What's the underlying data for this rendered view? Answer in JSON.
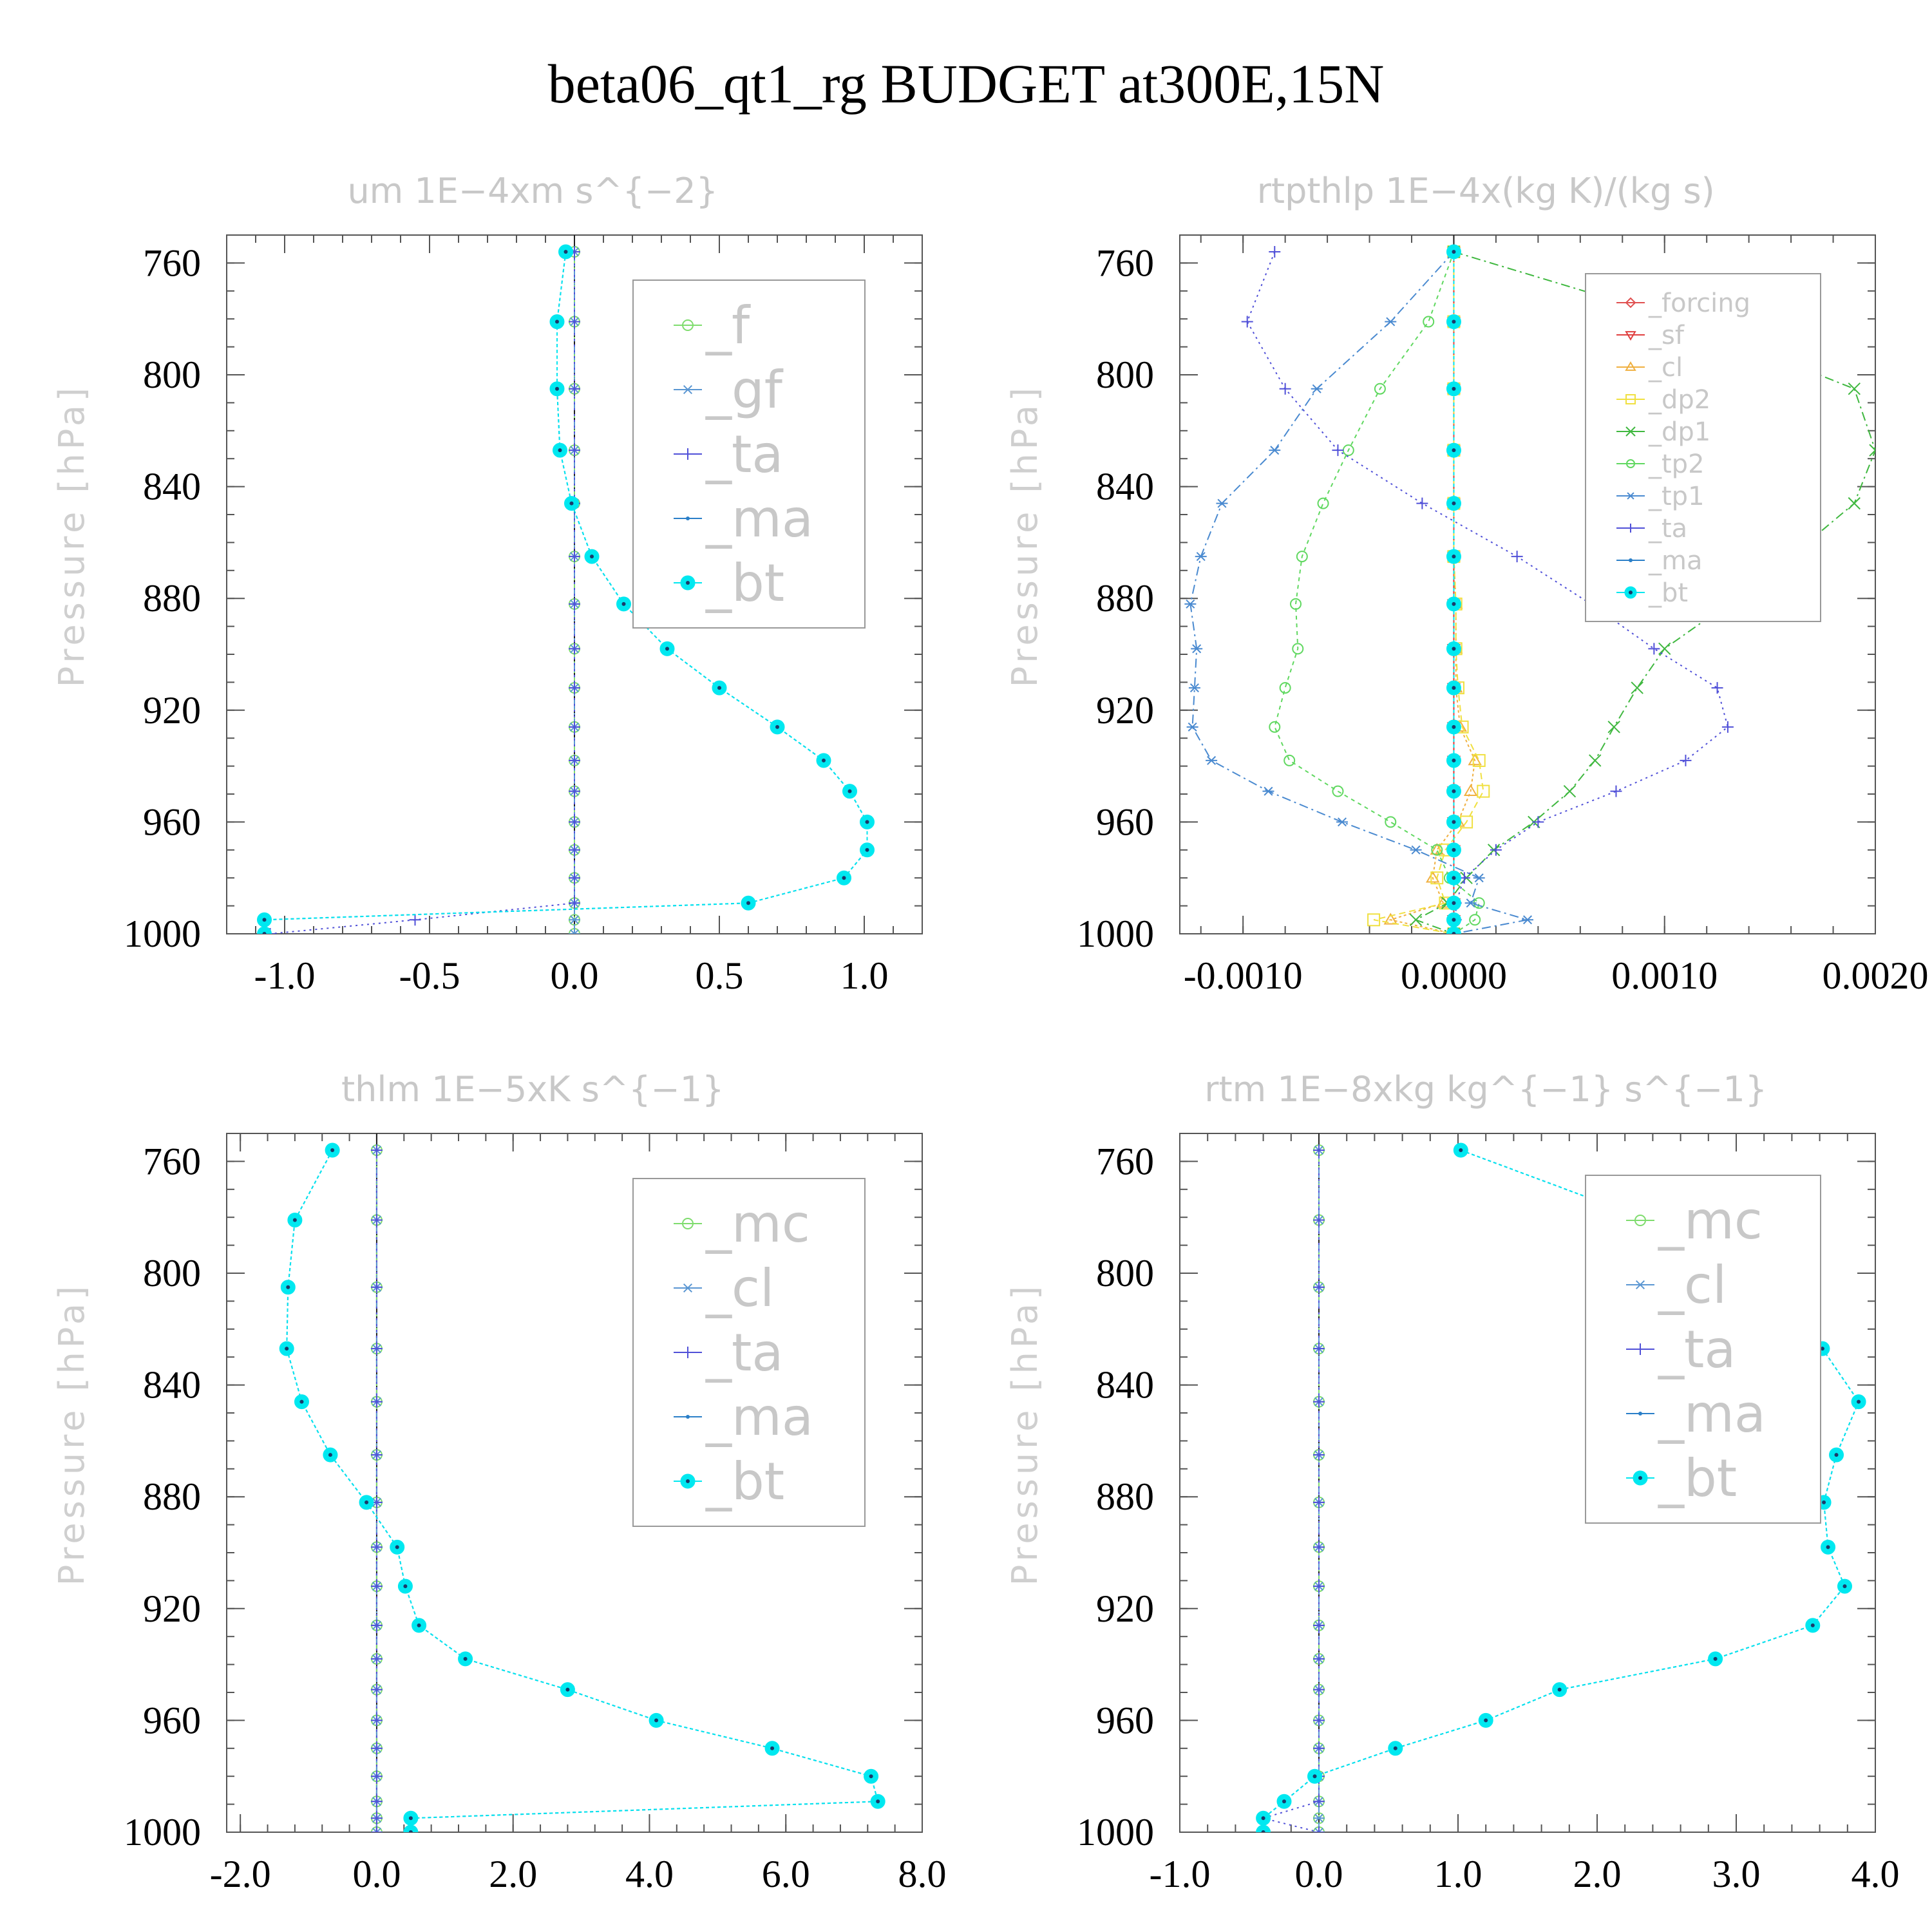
{
  "title": "beta06_qt1_rg  BUDGET at300E,15N",
  "chart_data": [
    {
      "type": "line",
      "title": "um   1E−4xm s^{−2}",
      "ylabel": "Pressure [hPa]",
      "y_inverted": true,
      "ylim": [
        750,
        1000
      ],
      "yticks": [
        760,
        800,
        840,
        880,
        920,
        960,
        1000
      ],
      "xlim": [
        -1.2,
        1.2
      ],
      "xticks": [
        -1.0,
        -0.5,
        0.0,
        0.5,
        1.0
      ],
      "xtick_labels": [
        "-1.0",
        "-0.5",
        "0.0",
        "0.5",
        "1.0"
      ],
      "legend_font": 80,
      "pressure": [
        756,
        781,
        805,
        827,
        846,
        865,
        882,
        898,
        912,
        926,
        938,
        949,
        960,
        970,
        980,
        989,
        995,
        1000
      ],
      "series": [
        {
          "name": "_f",
          "color": "#7fdc6e",
          "marker": "circle-open",
          "dash": "6 6",
          "values": [
            0,
            0,
            0,
            0,
            0,
            0,
            0,
            0,
            0,
            0,
            0,
            0,
            0,
            0,
            0,
            0,
            0,
            0
          ]
        },
        {
          "name": "_gf",
          "color": "#5a96d2",
          "marker": "star",
          "dash": "14 6 3 6",
          "values": [
            0,
            0,
            0,
            0,
            0,
            0,
            0,
            0,
            0,
            0,
            0,
            0,
            0,
            0,
            0,
            0,
            0,
            0
          ]
        },
        {
          "name": "_ta",
          "color": "#5050d8",
          "marker": "plus",
          "dash": "3 6",
          "values": [
            0,
            0,
            0,
            0,
            0,
            0,
            0,
            0,
            0,
            0,
            0,
            0,
            0,
            0,
            0,
            0,
            -0.55,
            -1.05
          ]
        },
        {
          "name": "_ma",
          "color": "#2a7fc8",
          "marker": "dot",
          "dash": "5 4",
          "values": [
            -0.03,
            -0.06,
            -0.06,
            -0.05,
            -0.01,
            0.06,
            0.17,
            0.32,
            0.5,
            0.7,
            0.86,
            0.95,
            1.01,
            1.01,
            0.93,
            0.6,
            -1.07,
            -1.07
          ]
        },
        {
          "name": "_bt",
          "color": "#00e8f0",
          "marker": "filled",
          "dash": "5 4",
          "values": [
            -0.03,
            -0.06,
            -0.06,
            -0.05,
            -0.01,
            0.06,
            0.17,
            0.32,
            0.5,
            0.7,
            0.86,
            0.95,
            1.01,
            1.01,
            0.93,
            0.6,
            -1.07,
            -1.07
          ]
        }
      ]
    },
    {
      "type": "line",
      "title": "rtpthlp   1E−4x(kg K)/(kg s)",
      "ylabel": "Pressure [hPa]",
      "y_inverted": true,
      "ylim": [
        750,
        1000
      ],
      "yticks": [
        760,
        800,
        840,
        880,
        920,
        960,
        1000
      ],
      "xlim": [
        -0.0013,
        0.002
      ],
      "xticks": [
        -0.001,
        0.0,
        0.001,
        0.002
      ],
      "xtick_labels": [
        "-0.0010",
        "0.0000",
        "0.0010",
        "0.0020"
      ],
      "legend_font": 40,
      "pressure": [
        756,
        781,
        805,
        827,
        846,
        865,
        882,
        898,
        912,
        926,
        938,
        949,
        960,
        970,
        980,
        989,
        995,
        1000
      ],
      "series": [
        {
          "name": "_forcing",
          "color": "#e05050",
          "marker": "diamond",
          "dash": "",
          "values": [
            0,
            0,
            0,
            0,
            0,
            0,
            0,
            0,
            0,
            0,
            0,
            0,
            0,
            0,
            0,
            0,
            0,
            0
          ]
        },
        {
          "name": "_sf",
          "color": "#e04040",
          "marker": "tri-down",
          "dash": "8 4",
          "values": [
            0,
            0,
            0,
            0,
            0,
            0,
            0,
            0,
            0,
            0,
            0,
            0,
            0,
            0,
            0,
            0,
            0,
            0
          ]
        },
        {
          "name": "_cl",
          "color": "#f0b040",
          "marker": "tri-up",
          "dash": "4 4",
          "values": [
            0,
            0,
            0,
            0,
            0,
            0,
            1e-05,
            1e-05,
            1e-05,
            3e-05,
            0.0001,
            8e-05,
            2e-05,
            -8e-05,
            -0.0001,
            -5e-05,
            -0.0003,
            0
          ]
        },
        {
          "name": "_dp2",
          "color": "#f0e040",
          "marker": "square",
          "dash": "10 6",
          "values": [
            0,
            0,
            0,
            0,
            0,
            0,
            1e-05,
            1e-05,
            2e-05,
            4e-05,
            0.00012,
            0.00014,
            6e-05,
            -4e-05,
            -8e-05,
            -4e-05,
            -0.00038,
            0
          ]
        },
        {
          "name": "_dp1",
          "color": "#40b840",
          "marker": "x",
          "dash": "14 6 3 6",
          "values": [
            0,
            0.0011,
            0.0019,
            0.002,
            0.0019,
            0.0016,
            0.0013,
            0.001,
            0.00087,
            0.00076,
            0.00067,
            0.00055,
            0.00038,
            0.00019,
            6e-05,
            -3e-05,
            -0.00018,
            0
          ]
        },
        {
          "name": "_tp2",
          "color": "#60d860",
          "marker": "circle-open",
          "dash": "6 6",
          "values": [
            0,
            -0.00012,
            -0.00035,
            -0.0005,
            -0.00062,
            -0.00072,
            -0.00075,
            -0.00074,
            -0.0008,
            -0.00085,
            -0.00078,
            -0.00055,
            -0.0003,
            -8e-05,
            -2e-05,
            0.00012,
            0.0001,
            0
          ]
        },
        {
          "name": "_tp1",
          "color": "#4a8ad0",
          "marker": "star",
          "dash": "14 6 3 6",
          "values": [
            0,
            -0.0003,
            -0.00065,
            -0.00085,
            -0.0011,
            -0.0012,
            -0.00125,
            -0.00122,
            -0.00123,
            -0.00124,
            -0.00115,
            -0.00088,
            -0.00053,
            -0.00018,
            0.00012,
            8e-05,
            0.00035,
            0
          ]
        },
        {
          "name": "_ta",
          "color": "#5050d8",
          "marker": "plus",
          "dash": "3 6",
          "values": [
            -0.00085,
            -0.00098,
            -0.0008,
            -0.00055,
            -0.00015,
            0.0003,
            0.00065,
            0.00095,
            0.00125,
            0.0013,
            0.0011,
            0.00077,
            0.0004,
            0.0002,
            5e-05,
            1e-05,
            1e-05,
            0
          ]
        },
        {
          "name": "_ma",
          "color": "#2a7fc8",
          "marker": "dot",
          "dash": "5 4",
          "values": [
            0,
            0,
            0,
            0,
            0,
            0,
            0,
            0,
            0,
            0,
            0,
            0,
            0,
            0,
            0,
            0,
            0,
            0
          ]
        },
        {
          "name": "_bt",
          "color": "#00e8f0",
          "marker": "filled",
          "dash": "5 4",
          "values": [
            0,
            0,
            0,
            0,
            0,
            0,
            0,
            0,
            0,
            0,
            0,
            0,
            0,
            0,
            0,
            0,
            0,
            0
          ]
        }
      ]
    },
    {
      "type": "line",
      "title": "thlm   1E−5xK s^{−1}",
      "ylabel": "Pressure [hPa]",
      "y_inverted": true,
      "ylim": [
        750,
        1000
      ],
      "yticks": [
        760,
        800,
        840,
        880,
        920,
        960,
        1000
      ],
      "xlim": [
        -2.2,
        8.0
      ],
      "xticks": [
        -2.0,
        0.0,
        2.0,
        4.0,
        6.0,
        8.0
      ],
      "xtick_labels": [
        "-2.0",
        "0.0",
        "2.0",
        "4.0",
        "6.0",
        "8.0"
      ],
      "legend_font": 80,
      "pressure": [
        756,
        781,
        805,
        827,
        846,
        865,
        882,
        898,
        912,
        926,
        938,
        949,
        960,
        970,
        980,
        989,
        995,
        1000
      ],
      "series": [
        {
          "name": "_mc",
          "color": "#7fdc6e",
          "marker": "circle-open",
          "dash": "6 6",
          "values": [
            0,
            0,
            0,
            0,
            0,
            0,
            0,
            0,
            0,
            0,
            0,
            0,
            0,
            0,
            0,
            0,
            0,
            0
          ]
        },
        {
          "name": "_cl",
          "color": "#5a96d2",
          "marker": "star",
          "dash": "14 6 3 6",
          "values": [
            0,
            0,
            0,
            0,
            0,
            0,
            0,
            0,
            0,
            0,
            0,
            0,
            0,
            0,
            0,
            0,
            0,
            0
          ]
        },
        {
          "name": "_ta",
          "color": "#5050d8",
          "marker": "plus",
          "dash": "3 6",
          "values": [
            0,
            0,
            0,
            0,
            0,
            0,
            0,
            0,
            0,
            0,
            0,
            0,
            0,
            0,
            0,
            0,
            0,
            0
          ]
        },
        {
          "name": "_ma",
          "color": "#2a7fc8",
          "marker": "dot",
          "dash": "5 4",
          "values": [
            -0.65,
            -1.2,
            -1.3,
            -1.32,
            -1.1,
            -0.68,
            -0.15,
            0.3,
            0.42,
            0.62,
            1.3,
            2.8,
            4.1,
            5.8,
            7.25,
            7.35,
            0.5,
            0.5
          ]
        },
        {
          "name": "_bt",
          "color": "#00e8f0",
          "marker": "filled",
          "dash": "5 4",
          "values": [
            -0.65,
            -1.2,
            -1.3,
            -1.32,
            -1.1,
            -0.68,
            -0.15,
            0.3,
            0.42,
            0.62,
            1.3,
            2.8,
            4.1,
            5.8,
            7.25,
            7.35,
            0.5,
            0.5
          ]
        }
      ]
    },
    {
      "type": "line",
      "title": "rtm   1E−8xkg kg^{−1} s^{−1}",
      "ylabel": "Pressure [hPa]",
      "y_inverted": true,
      "ylim": [
        750,
        1000
      ],
      "yticks": [
        760,
        800,
        840,
        880,
        920,
        960,
        1000
      ],
      "xlim": [
        -1.0,
        4.0
      ],
      "xticks": [
        -1.0,
        0.0,
        1.0,
        2.0,
        3.0,
        4.0
      ],
      "xtick_labels": [
        "-1.0",
        "0.0",
        "1.0",
        "2.0",
        "3.0",
        "4.0"
      ],
      "legend_font": 80,
      "pressure": [
        756,
        781,
        805,
        827,
        846,
        865,
        882,
        898,
        912,
        926,
        938,
        949,
        960,
        970,
        980,
        989,
        995,
        1000
      ],
      "series": [
        {
          "name": "_mc",
          "color": "#7fdc6e",
          "marker": "circle-open",
          "dash": "6 6",
          "values": [
            0,
            0,
            0,
            0,
            0,
            0,
            0,
            0,
            0,
            0,
            0,
            0,
            0,
            0,
            0,
            0,
            0,
            0
          ]
        },
        {
          "name": "_cl",
          "color": "#5a96d2",
          "marker": "star",
          "dash": "14 6 3 6",
          "values": [
            0,
            0,
            0,
            0,
            0,
            0,
            0,
            0,
            0,
            0,
            0,
            0,
            0,
            0,
            0,
            0,
            0,
            0
          ]
        },
        {
          "name": "_ta",
          "color": "#5050d8",
          "marker": "plus",
          "dash": "3 6",
          "values": [
            0,
            0,
            0,
            0,
            0,
            0,
            0,
            0,
            0,
            0,
            0,
            0,
            0,
            0,
            0,
            0,
            -0.4,
            0
          ]
        },
        {
          "name": "_ma",
          "color": "#2a7fc8",
          "marker": "dot",
          "dash": "5 4",
          "values": [
            1.02,
            2.37,
            3.15,
            3.62,
            3.88,
            3.72,
            3.63,
            3.66,
            3.78,
            3.55,
            2.85,
            1.73,
            1.2,
            0.55,
            -0.03,
            -0.25,
            -0.4,
            -0.4
          ]
        },
        {
          "name": "_bt",
          "color": "#00e8f0",
          "marker": "filled",
          "dash": "5 4",
          "values": [
            1.02,
            2.37,
            3.15,
            3.62,
            3.88,
            3.72,
            3.63,
            3.66,
            3.78,
            3.55,
            2.85,
            1.73,
            1.2,
            0.55,
            -0.03,
            -0.25,
            -0.4,
            -0.4
          ]
        }
      ]
    }
  ]
}
